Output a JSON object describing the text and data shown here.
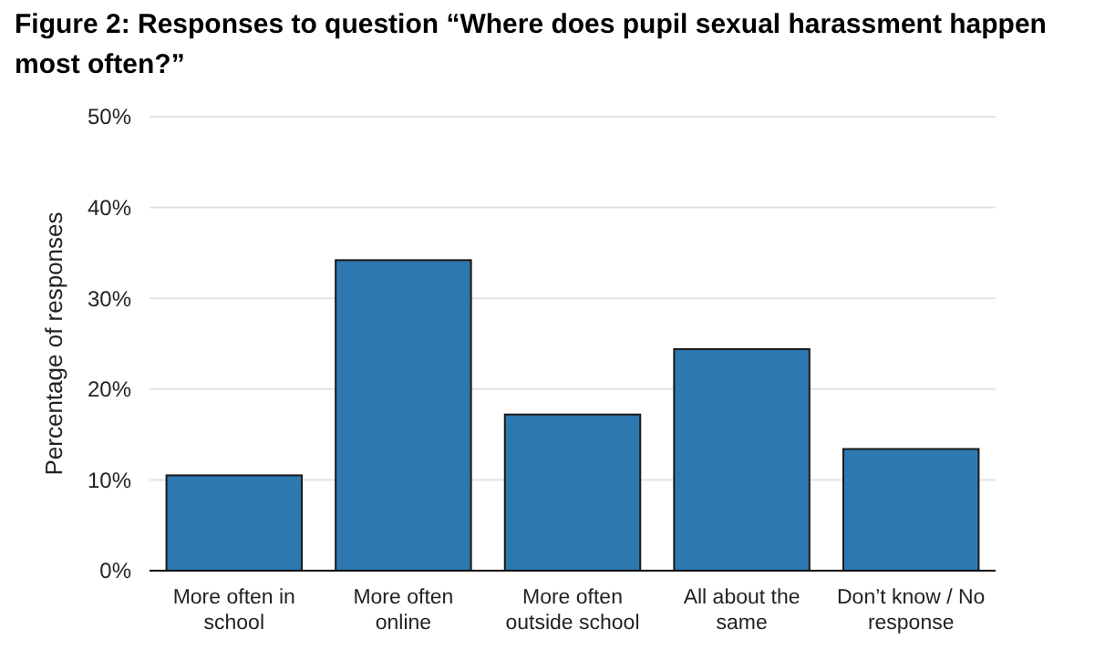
{
  "chart_data": {
    "type": "bar",
    "title": "Figure 2: Responses to question “Where does pupil sexual harassment happen most often?”",
    "ylabel": "Percentage of responses",
    "categories": [
      "More often in school",
      "More often online",
      "More often outside school",
      "All about the same",
      "Don’t know / No response"
    ],
    "values": [
      10.5,
      34.2,
      17.2,
      24.4,
      13.4
    ],
    "color": "#2e78b0",
    "ylim": [
      0,
      50
    ],
    "yticks": [
      {
        "value": 0,
        "label": "0%"
      },
      {
        "value": 10,
        "label": "10%"
      },
      {
        "value": 20,
        "label": "20%"
      },
      {
        "value": 30,
        "label": "30%"
      },
      {
        "value": 40,
        "label": "40%"
      },
      {
        "value": 50,
        "label": "50%"
      }
    ],
    "grid": "y"
  }
}
